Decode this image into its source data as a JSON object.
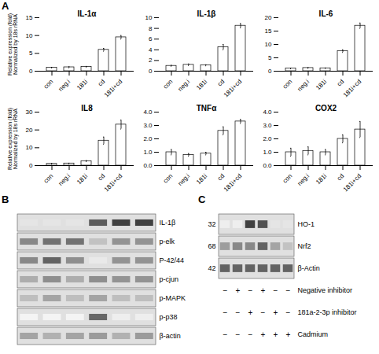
{
  "chart_data": [
    {
      "panel": "A",
      "charts": [
        {
          "type": "bar",
          "title": "IL-1α",
          "ylabel": "Relative expression (fold)\nNormalized by 18s rRNA",
          "categories": [
            "con",
            "neg.i",
            "181i",
            "cd",
            "181i+cd"
          ],
          "values": [
            1.0,
            1.1,
            1.2,
            6.0,
            9.5
          ],
          "errors": [
            0.1,
            0.15,
            0.15,
            0.4,
            0.5
          ],
          "ylim": [
            0,
            15
          ],
          "yticks": [
            0,
            5,
            10,
            15
          ],
          "color": "#ffffff"
        },
        {
          "type": "bar",
          "title": "IL-1β",
          "categories": [
            "con",
            "neg.i",
            "181i",
            "cd",
            "181i+cd"
          ],
          "values": [
            1.0,
            1.2,
            1.1,
            4.5,
            8.5
          ],
          "errors": [
            0.1,
            0.15,
            0.1,
            0.5,
            0.4
          ],
          "ylim": [
            0,
            10
          ],
          "yticks": [
            0,
            2,
            4,
            6,
            8,
            10
          ],
          "color": "#ffffff"
        },
        {
          "type": "bar",
          "title": "IL-6",
          "categories": [
            "con",
            "neg.i",
            "181i",
            "cd",
            "181i+cd"
          ],
          "values": [
            1.0,
            1.2,
            1.1,
            7.5,
            17.0
          ],
          "errors": [
            0.1,
            0.15,
            0.1,
            0.5,
            1.0
          ],
          "ylim": [
            0,
            20
          ],
          "yticks": [
            0,
            5,
            10,
            15,
            20
          ],
          "color": "#ffffff"
        },
        {
          "type": "bar",
          "title": "IL8",
          "ylabel": "Relative expression (fold)\nNormalized by 18s rRNA",
          "categories": [
            "con",
            "neg.i",
            "181i",
            "cd",
            "181i+cd"
          ],
          "values": [
            1.0,
            1.2,
            2.5,
            14.0,
            23.0
          ],
          "errors": [
            0.2,
            0.15,
            0.3,
            2.0,
            2.5
          ],
          "ylim": [
            0,
            30
          ],
          "yticks": [
            0,
            10,
            20,
            30
          ],
          "color": "#ffffff"
        },
        {
          "type": "bar",
          "title": "TNFα",
          "categories": [
            "con",
            "neg.i",
            "181i",
            "cd",
            "181i+cd"
          ],
          "values": [
            1.0,
            0.8,
            0.9,
            2.6,
            3.3
          ],
          "errors": [
            0.2,
            0.1,
            0.1,
            0.3,
            0.15
          ],
          "ylim": [
            0,
            4
          ],
          "yticks": [
            0,
            1,
            2,
            3,
            4
          ],
          "color": "#ffffff"
        },
        {
          "type": "bar",
          "title": "COX2",
          "categories": [
            "con",
            "neg.i",
            "181i",
            "cd",
            "181i+cd"
          ],
          "values": [
            1.0,
            1.1,
            1.0,
            2.0,
            2.7
          ],
          "errors": [
            0.3,
            0.3,
            0.2,
            0.3,
            0.6
          ],
          "ylim": [
            0,
            4
          ],
          "yticks": [
            0,
            1,
            2,
            3,
            4
          ],
          "color": "#ffffff"
        }
      ]
    },
    {
      "panel": "B",
      "type": "blot",
      "rows": [
        "IL-1β",
        "p-elk",
        "P-42/44",
        "p-cjun",
        "p-MAPK",
        "p-p38",
        "β-actin"
      ],
      "cells": [
        [
          0.12,
          0.12,
          0.12,
          0.75,
          0.88,
          0.88
        ],
        [
          0.55,
          0.65,
          0.65,
          0.28,
          0.5,
          0.5
        ],
        [
          0.55,
          0.72,
          0.52,
          0.1,
          0.5,
          0.5
        ],
        [
          0.38,
          0.52,
          0.38,
          0.52,
          0.5,
          0.5
        ],
        [
          0.3,
          0.42,
          0.3,
          0.42,
          0.3,
          0.3
        ],
        [
          0.05,
          0.05,
          0.05,
          0.7,
          0.08,
          0.08
        ],
        [
          0.42,
          0.36,
          0.42,
          0.46,
          0.36,
          0.46
        ]
      ],
      "zlim": [
        0,
        1
      ],
      "color": "#e0e0e0"
    },
    {
      "panel": "C",
      "type": "blot",
      "rows": [
        "HO-1",
        "Nrf2",
        "β-Actin"
      ],
      "mw": [
        32,
        68,
        42
      ],
      "cells": [
        [
          0.08,
          0.08,
          0.88,
          0.8,
          0.12,
          0.12
        ],
        [
          0.45,
          0.55,
          0.55,
          0.72,
          0.42,
          0.28
        ],
        [
          0.72,
          0.72,
          0.72,
          0.72,
          0.72,
          0.72
        ]
      ],
      "zlim": [
        0,
        1
      ],
      "color": "#e0e0e0",
      "treatment_labels": [
        "Negative inhibitor",
        "181a-2-3p inhibitor",
        "Cadmium"
      ],
      "treatments": [
        [
          "−",
          "+",
          "−",
          "+",
          "−",
          "−"
        ],
        [
          "−",
          "−",
          "+",
          "−",
          "+",
          "−"
        ],
        [
          "−",
          "−",
          "−",
          "+",
          "+",
          "+"
        ]
      ]
    }
  ]
}
